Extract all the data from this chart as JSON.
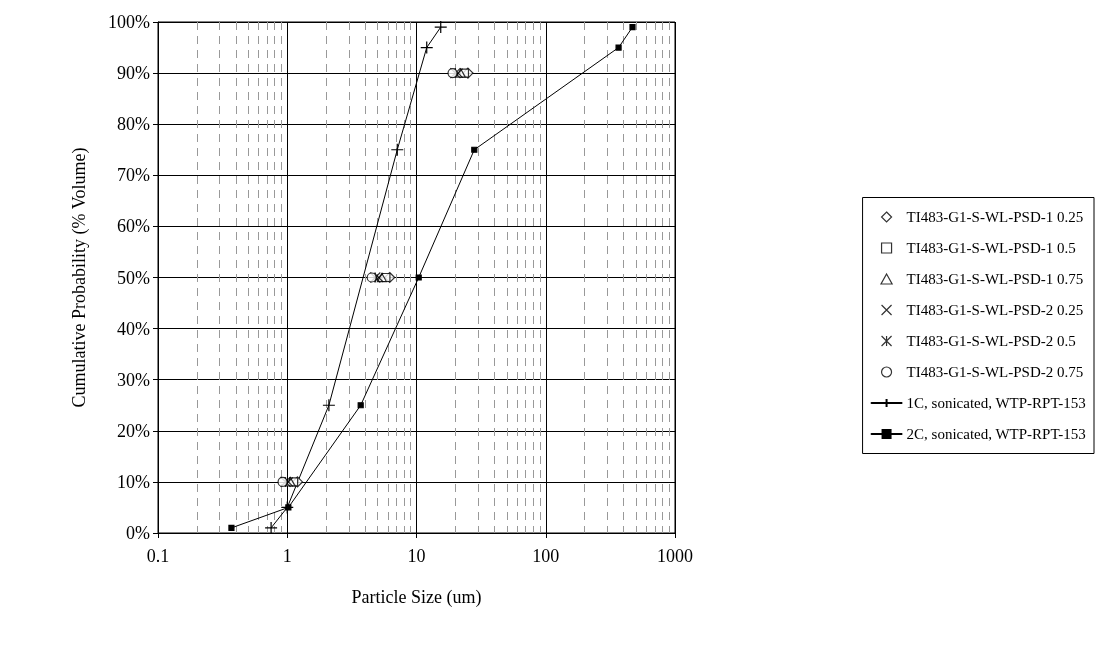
{
  "chart_data": {
    "type": "scatter",
    "xlabel": "Particle Size (um)",
    "ylabel": "Cumulative Probability (% Volume)",
    "log": "x",
    "xlim": [
      0.1,
      1000
    ],
    "xticks": [
      0.1,
      1,
      10,
      100,
      1000
    ],
    "ylim": [
      0,
      100
    ],
    "yticks": [
      {
        "value": 0,
        "label": "0%"
      },
      {
        "value": 10,
        "label": "10%"
      },
      {
        "value": 20,
        "label": "20%"
      },
      {
        "value": 30,
        "label": "30%"
      },
      {
        "value": 40,
        "label": "40%"
      },
      {
        "value": 50,
        "label": "50%"
      },
      {
        "value": 60,
        "label": "60%"
      },
      {
        "value": 70,
        "label": "70%"
      },
      {
        "value": 80,
        "label": "80%"
      },
      {
        "value": 90,
        "label": "90%"
      },
      {
        "value": 100,
        "label": "100%"
      }
    ],
    "grid": true,
    "legend": "right",
    "series": [
      {
        "name": "TI483-G1-S-WL-PSD-1 0.25",
        "color": "#000000",
        "marker": "diamond",
        "x": [
          1.2,
          6.2,
          25
        ],
        "values": [
          10,
          50,
          90
        ]
      },
      {
        "name": "TI483-G1-S-WL-PSD-1 0.5",
        "color": "#000000",
        "marker": "square",
        "x": [
          1.12,
          5.8,
          23.5
        ],
        "values": [
          10,
          50,
          90
        ]
      },
      {
        "name": "TI483-G1-S-WL-PSD-1 0.75",
        "color": "#000000",
        "marker": "triangle",
        "x": [
          1.06,
          5.4,
          22
        ],
        "values": [
          10,
          50,
          90
        ]
      },
      {
        "name": "TI483-G1-S-WL-PSD-2 0.25",
        "color": "#000000",
        "marker": "cross",
        "x": [
          1.02,
          5.1,
          21
        ],
        "values": [
          10,
          50,
          90
        ]
      },
      {
        "name": "TI483-G1-S-WL-PSD-2 0.5",
        "color": "#000000",
        "x": [
          0.97,
          4.8,
          20
        ],
        "values": [
          10,
          50,
          90
        ]
      },
      {
        "name": "TI483-G1-S-WL-PSD-2 0.75",
        "color": "#000000",
        "marker": "circle",
        "x": [
          0.92,
          4.5,
          19
        ],
        "values": [
          10,
          50,
          90
        ]
      },
      {
        "name": "1C, sonicated, WTP-RPT-153",
        "type": "line",
        "color": "#000000",
        "marker": "plus",
        "line_style": "solid",
        "x": [
          0.75,
          1,
          2.1,
          7.1,
          12,
          15.4
        ],
        "values": [
          1,
          5,
          25,
          75,
          95,
          99
        ]
      },
      {
        "name": "2C, sonicated, WTP-RPT-153",
        "type": "line",
        "color": "#000000",
        "marker": "square",
        "line_style": "solid",
        "x": [
          0.37,
          1.02,
          3.7,
          10.4,
          28,
          366,
          469
        ],
        "values": [
          1,
          5,
          25,
          50,
          75,
          95,
          99
        ]
      }
    ]
  }
}
